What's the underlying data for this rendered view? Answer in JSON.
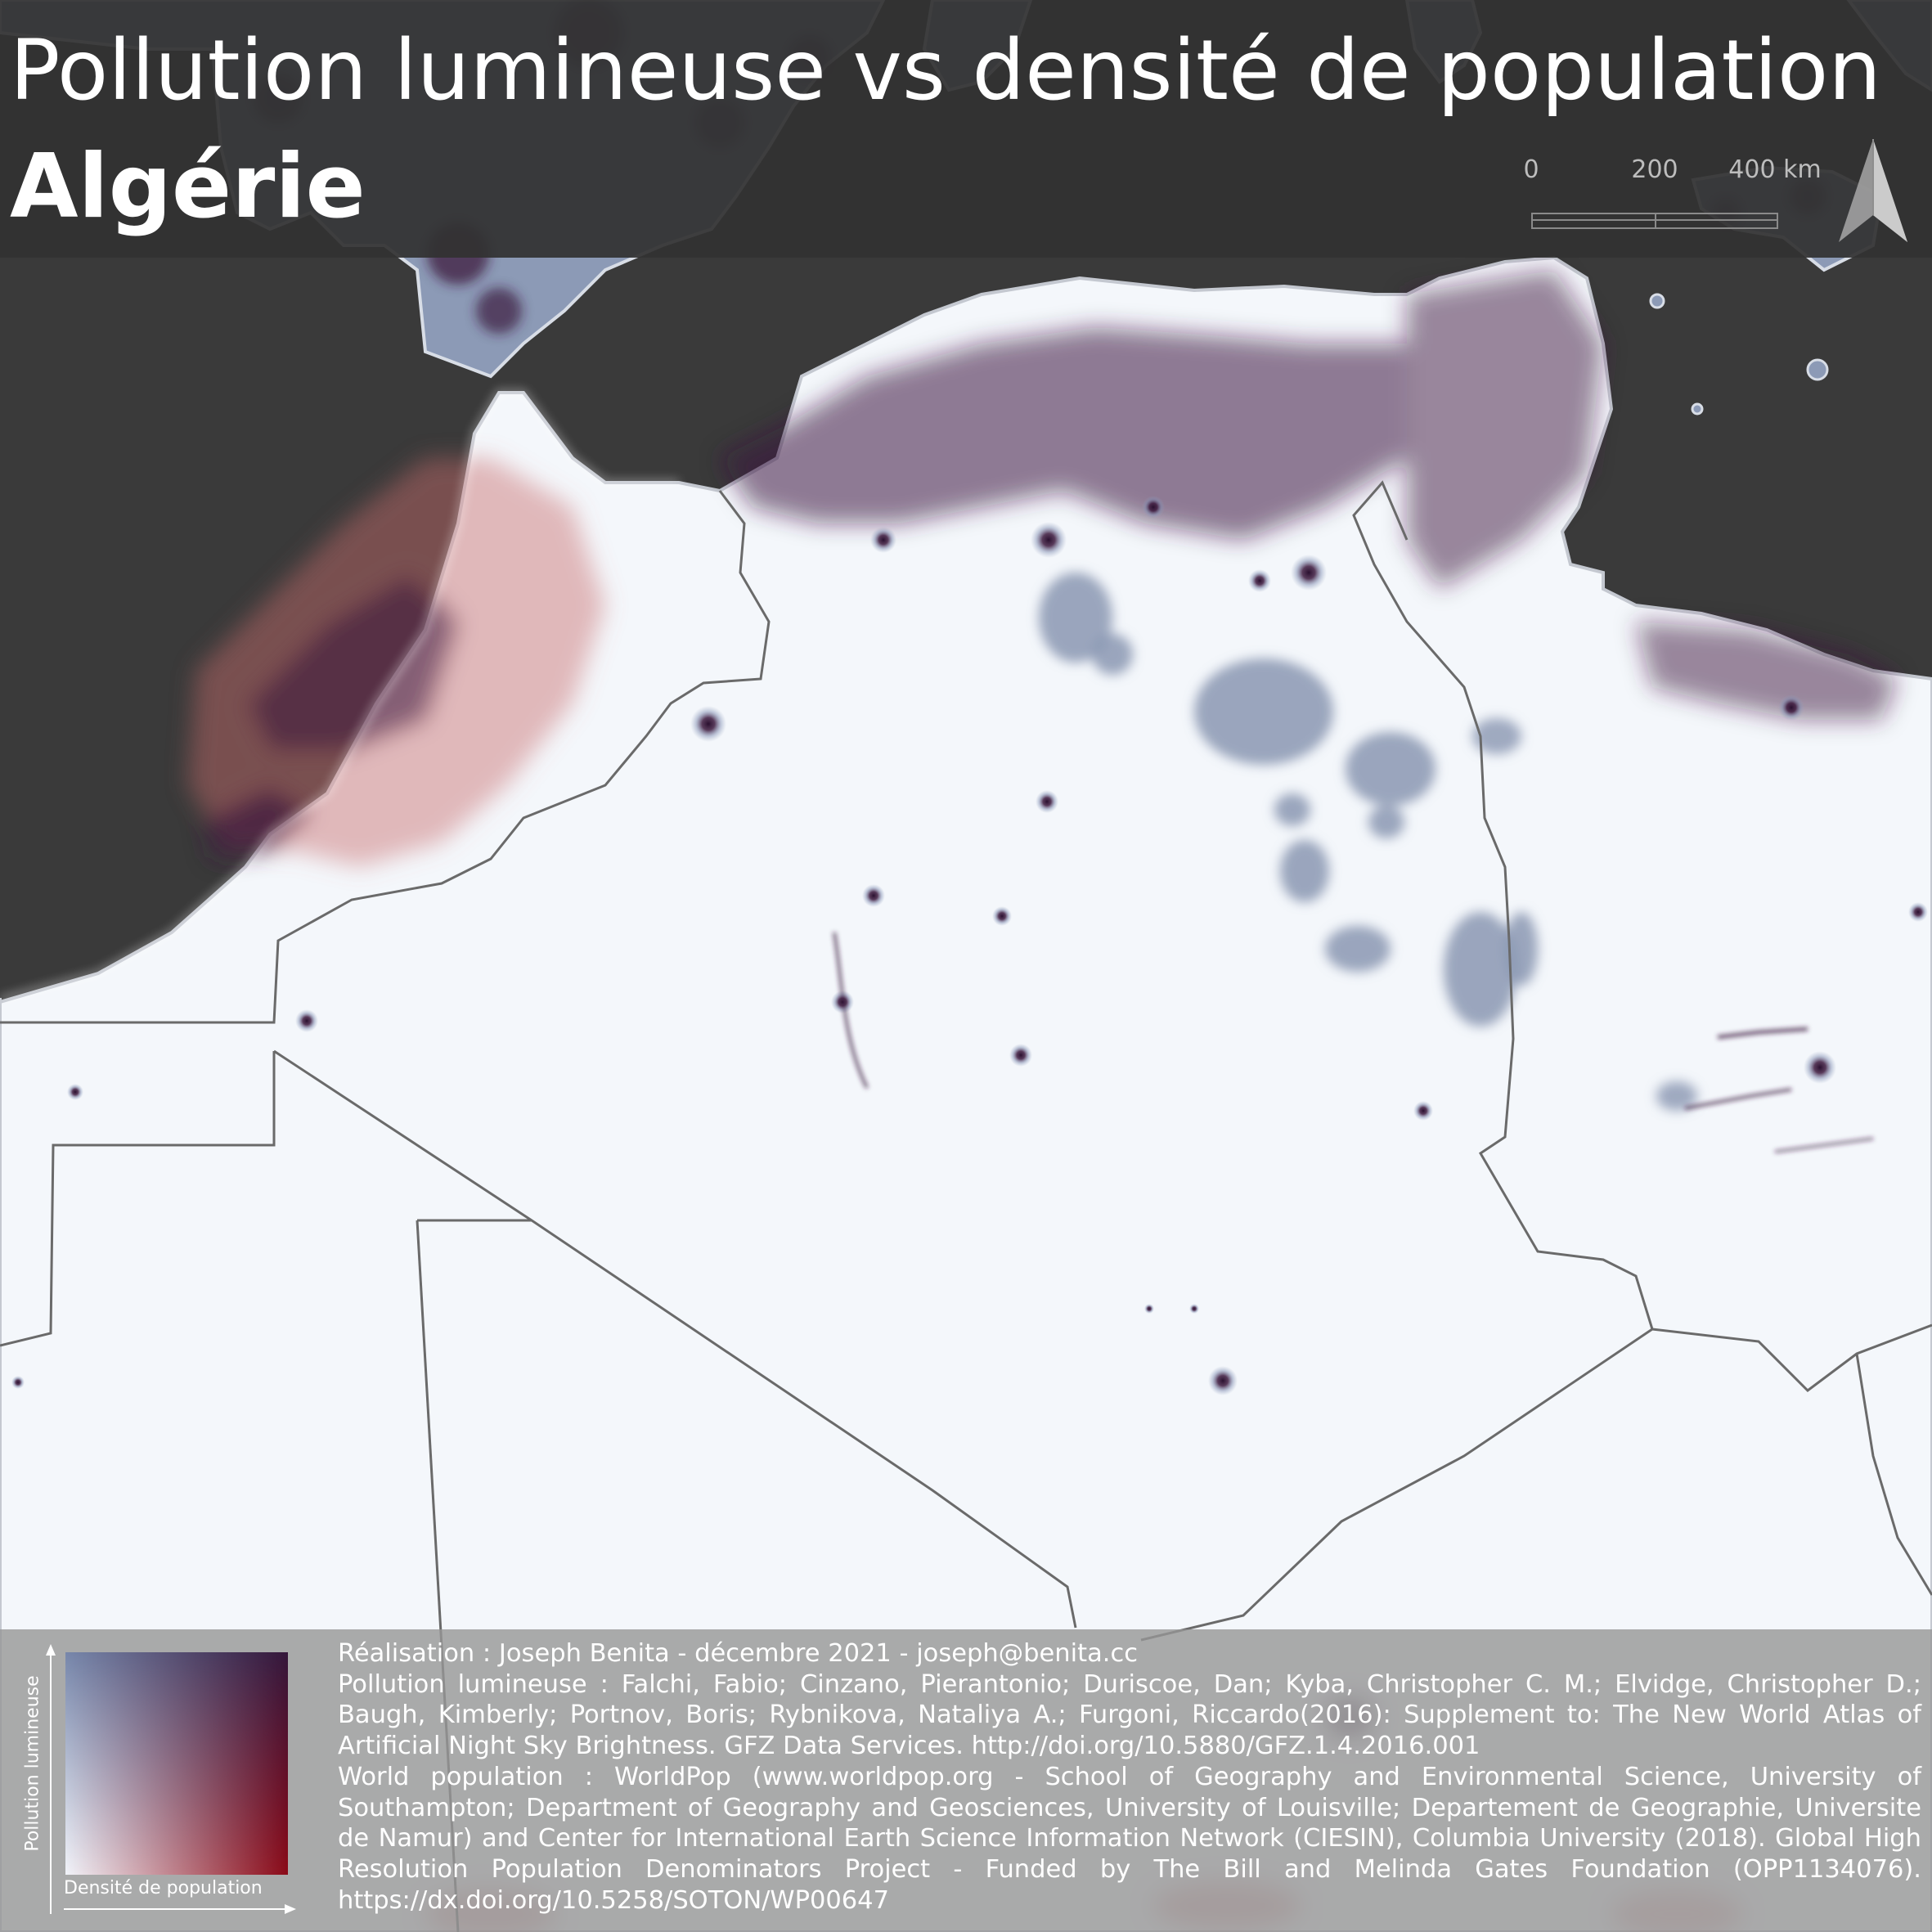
{
  "title": {
    "line1": "Pollution lumineuse vs densité de population",
    "line2": "Algérie"
  },
  "scale_bar": {
    "ticks": [
      "0",
      "200",
      "400 km"
    ]
  },
  "north_arrow": {
    "icon": "north-arrow-icon"
  },
  "colors": {
    "ocean": "#3a3a3a",
    "land_base": "#f4f7fb",
    "high_light": "#8a96b2",
    "high_population": "#8b1a2a",
    "both_high": "#3d1a3e",
    "borders": "#6a6a6a"
  },
  "legend": {
    "y_label": "Pollution lumineuse",
    "x_label": "Densité de population",
    "corner_colors": {
      "low_low": "#f2f4fa",
      "high_light_low_pop": "#7787ab",
      "low_light_high_pop": "#8b0a18",
      "high_high": "#34163a"
    }
  },
  "credits": {
    "author": "Réalisation : Joseph Benita - décembre 2021 - joseph@benita.cc",
    "light_source": "Pollution lumineuse : Falchi, Fabio; Cinzano, Pierantonio; Duriscoe, Dan; Kyba, Christopher C. M.; Elvidge, Christopher D.; Baugh, Kimberly; Portnov, Boris; Rybnikova, Nataliya A.; Furgoni, Riccardo(2016): Supplement to: The New World Atlas of Artificial Night Sky Brightness. GFZ Data Services. http://doi.org/10.5880/GFZ.1.4.2016.001",
    "population_source": "World population : WorldPop (www.worldpop.org - School of Geography and Environmental Science, University of Southampton; Department of Geography and Geosciences, University of Louisville; Departement de Geographie, Universite de Namur) and Center for International Earth Science Information Network (CIESIN), Columbia University (2018). Global High Resolution Population Denominators Project - Funded by The Bill and Melinda Gates Foundation (OPP1134076). https://dx.doi.org/10.5258/SOTON/WP00647"
  }
}
